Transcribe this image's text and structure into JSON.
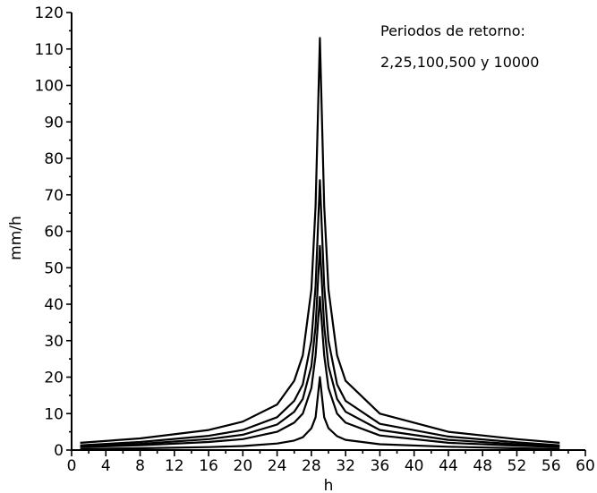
{
  "chart_data": {
    "type": "line",
    "title": "",
    "xlabel": "h",
    "ylabel": "mm/h",
    "xlim": [
      0,
      60
    ],
    "ylim": [
      0,
      120
    ],
    "xticks": [
      0,
      4,
      8,
      12,
      16,
      20,
      24,
      28,
      32,
      36,
      40,
      44,
      48,
      52,
      56,
      60
    ],
    "yticks": [
      0,
      10,
      20,
      30,
      40,
      50,
      60,
      70,
      80,
      90,
      100,
      110,
      120
    ],
    "grid": false,
    "legend": "none",
    "annotations": [
      "Periodos de retorno:",
      "2,25,100,500 y 10000"
    ],
    "series": [
      {
        "x": [
          1,
          8,
          16,
          20,
          24,
          26,
          27,
          28,
          28.5,
          29,
          29.5,
          30,
          31,
          32,
          36,
          44,
          52,
          57
        ],
        "values": [
          0.3,
          0.5,
          0.8,
          1.1,
          1.8,
          2.6,
          3.5,
          6,
          9,
          20,
          9,
          6,
          3.8,
          2.8,
          1.6,
          0.9,
          0.5,
          0.3
        ]
      },
      {
        "x": [
          1,
          8,
          16,
          20,
          24,
          26,
          27,
          28,
          28.5,
          29,
          29.5,
          30,
          31,
          32,
          36,
          44,
          52,
          57
        ],
        "values": [
          0.8,
          1.3,
          2.2,
          3.0,
          5.0,
          7.5,
          10,
          17,
          26,
          42,
          26,
          17,
          10,
          7.5,
          4.0,
          2.0,
          1.2,
          0.8
        ]
      },
      {
        "x": [
          1,
          8,
          16,
          20,
          24,
          26,
          27,
          28,
          28.5,
          29,
          29.5,
          30,
          31,
          32,
          36,
          44,
          52,
          57
        ],
        "values": [
          1.0,
          1.7,
          3.0,
          4.2,
          7.0,
          10.5,
          14,
          23,
          34,
          56,
          34,
          23,
          14,
          10.5,
          5.5,
          2.8,
          1.6,
          1.0
        ]
      },
      {
        "x": [
          1,
          8,
          16,
          20,
          24,
          26,
          27,
          28,
          28.5,
          29,
          29.5,
          30,
          31,
          32,
          36,
          44,
          52,
          57
        ],
        "values": [
          1.3,
          2.2,
          3.9,
          5.5,
          9.0,
          13.5,
          18,
          30,
          45,
          74,
          45,
          30,
          18,
          13.5,
          7.2,
          3.7,
          2.1,
          1.3
        ]
      },
      {
        "x": [
          1,
          8,
          16,
          20,
          24,
          26,
          27,
          28,
          28.5,
          29,
          29.5,
          30,
          31,
          32,
          36,
          44,
          52,
          57
        ],
        "values": [
          2.0,
          3.2,
          5.5,
          7.8,
          12.5,
          19,
          26,
          44,
          67,
          113,
          67,
          44,
          26,
          19,
          10,
          5.0,
          3.0,
          2.0
        ]
      }
    ]
  }
}
